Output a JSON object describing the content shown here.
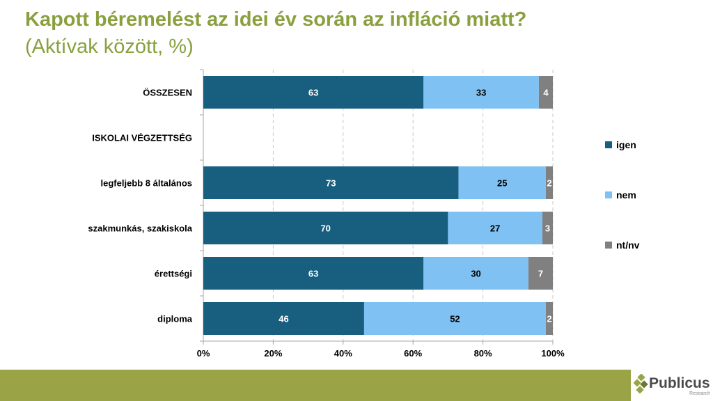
{
  "title": "Kapott béremelést az idei év során az infláció miatt?",
  "subtitle": "(Aktívak között, %)",
  "brand": {
    "name": "Publicus",
    "tagline": "Research"
  },
  "colors": {
    "igen": "#175e7f",
    "nem": "#7fc1f2",
    "ntnv": "#808080",
    "title": "#8aa03f",
    "footer": "#9aa446"
  },
  "chart_data": {
    "type": "bar",
    "orientation": "horizontal",
    "stacked": true,
    "title": "Kapott béremelést az idei év során az infláció miatt?",
    "subtitle": "(Aktívak között, %)",
    "categories": [
      "ÖSSZESEN",
      "ISKOLAI VÉGZETTSÉG",
      "legfeljebb 8 általános",
      "szakmunkás, szakiskola",
      "érettségi",
      "diploma"
    ],
    "series": [
      {
        "name": "igen",
        "values": [
          63,
          null,
          73,
          70,
          63,
          46
        ]
      },
      {
        "name": "nem",
        "values": [
          33,
          null,
          25,
          27,
          30,
          52
        ]
      },
      {
        "name": "nt/nv",
        "values": [
          4,
          null,
          2,
          3,
          7,
          2
        ]
      }
    ],
    "xlim": [
      0,
      100
    ],
    "xticks": [
      "0%",
      "20%",
      "40%",
      "60%",
      "80%",
      "100%"
    ],
    "grid": "vertical dashed",
    "legend": "right"
  }
}
